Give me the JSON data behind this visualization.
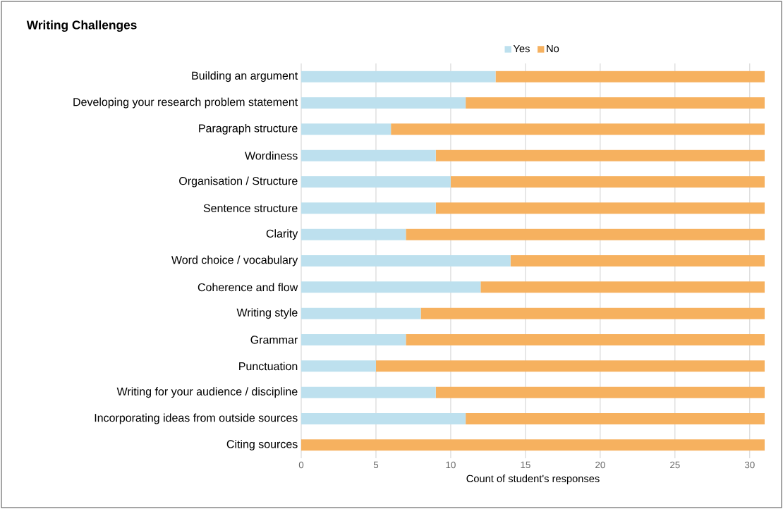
{
  "chart_data": {
    "type": "bar",
    "orientation": "horizontal",
    "stacked": true,
    "title": "Writing Challenges",
    "xlabel": "Count  of student's responses",
    "categories": [
      "Building an argument",
      "Developing your research problem statement",
      "Paragraph structure",
      "Wordiness",
      "Organisation / Structure",
      "Sentence structure",
      "Clarity",
      "Word choice / vocabulary",
      "Coherence and flow",
      "Writing style",
      "Grammar",
      "Punctuation",
      "Writing for your audience / discipline",
      "Incorporating ideas from outside sources",
      "Citing sources"
    ],
    "series": [
      {
        "name": "Yes",
        "color": "#bde0ee",
        "values": [
          13,
          11,
          6,
          9,
          10,
          9,
          7,
          14,
          12,
          8,
          7,
          5,
          9,
          11,
          0
        ]
      },
      {
        "name": "No",
        "color": "#f6b15f",
        "values": [
          18,
          20,
          25,
          22,
          21,
          22,
          24,
          17,
          19,
          23,
          24,
          26,
          22,
          20,
          31
        ]
      }
    ],
    "xlim": [
      0,
      31
    ],
    "xticks": [
      0,
      5,
      10,
      15,
      20,
      25,
      30
    ],
    "grid": "x",
    "legend": "top"
  }
}
